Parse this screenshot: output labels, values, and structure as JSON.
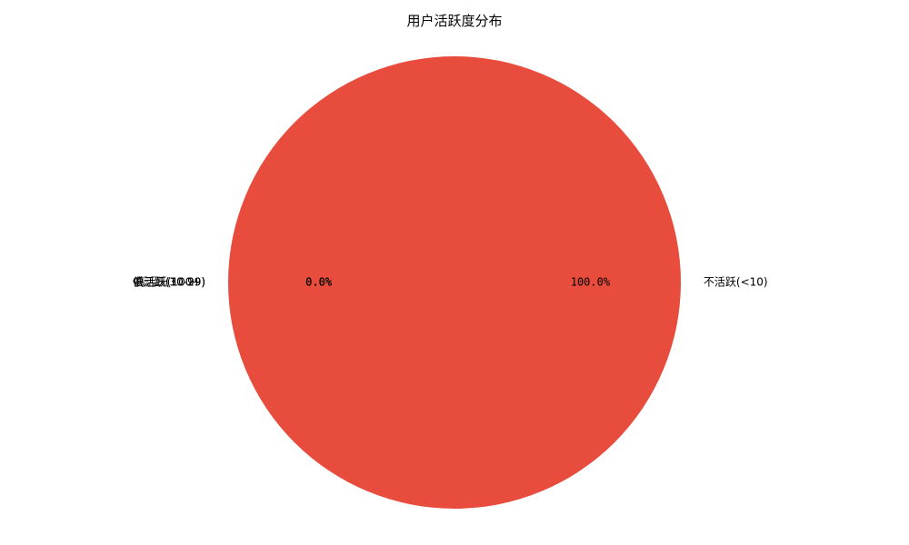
{
  "chart_data": {
    "type": "pie",
    "title": "用户活跃度分布",
    "slices": [
      {
        "label": "不活跃(<10)",
        "value": 100.0,
        "pct_label": "100.0%",
        "color": "#e74c3c"
      },
      {
        "label": "低活跃(10-29)",
        "value": 0.0,
        "pct_label": "0.0%",
        "color": "#f39c12"
      },
      {
        "label": "中活跃(30-99)",
        "value": 0.0,
        "pct_label": "0.0%",
        "color": "#3498db"
      },
      {
        "label": "高活跃(100+)",
        "value": 0.0,
        "pct_label": "0.0%",
        "color": "#2ecc71"
      }
    ],
    "start_angle_deg": 180,
    "direction": "counterclockwise",
    "legend": "none",
    "grid": false
  }
}
